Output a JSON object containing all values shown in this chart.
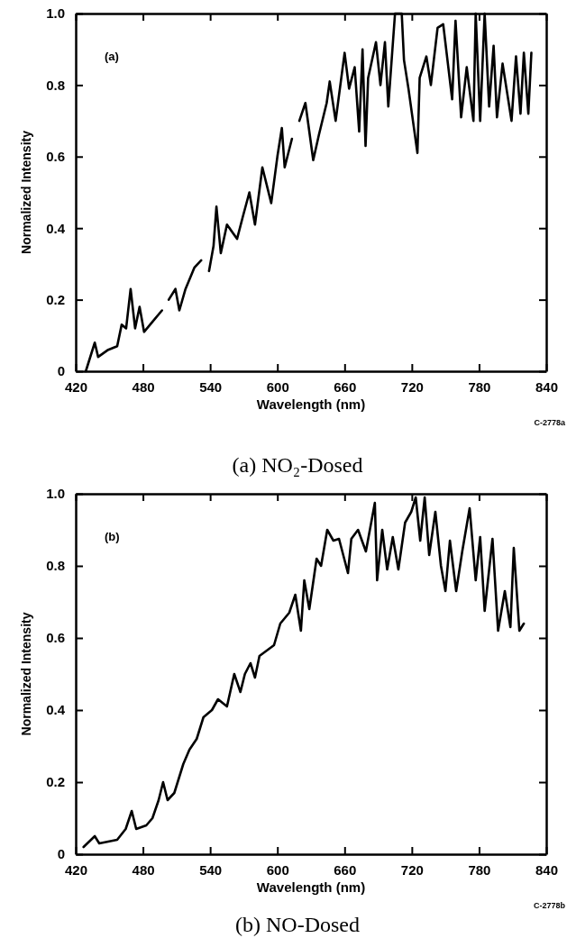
{
  "chart_data": [
    {
      "type": "line",
      "title": "(a) NO₂-Dosed",
      "xlabel": "Wavelength (nm)",
      "ylabel": "Normalized Intensity",
      "annotations": [
        "(a)",
        "C-2778a"
      ],
      "xlim": [
        420,
        840
      ],
      "ylim": [
        0,
        1.0
      ],
      "xticks": [
        420,
        480,
        540,
        600,
        660,
        720,
        780,
        840
      ],
      "yticks": [
        0,
        {
          "value": 0.2,
          "label": "0.2"
        },
        {
          "value": 0.4,
          "label": "0.4"
        },
        {
          "value": 0.6,
          "label": "0.6"
        },
        {
          "value": 0.8,
          "label": "0.8"
        },
        {
          "value": 1.0,
          "label": "1.0"
        }
      ],
      "grid": false,
      "marker": "none",
      "line_style": "solid",
      "series": [
        {
          "color": "#000000",
          "x": [
            429,
            437,
            440,
            449,
            457,
            461,
            465,
            469,
            473,
            477,
            481,
            489,
            497,
            500,
            503,
            509,
            512.5,
            518,
            526,
            532,
            535,
            539,
            543,
            545.6,
            549.5,
            555,
            564,
            569,
            575,
            580,
            586.6,
            594.5,
            600,
            604,
            606.5,
            613,
            616,
            619.6,
            625,
            632,
            637,
            644,
            646.7,
            652,
            660,
            664,
            669,
            673,
            676,
            678.7,
            681,
            688,
            692,
            696,
            699,
            705,
            711,
            713,
            717,
            725,
            727,
            733,
            737,
            743,
            748,
            756,
            759,
            764,
            769,
            775,
            777,
            781,
            785,
            789,
            793,
            796,
            801,
            809,
            813,
            817,
            820,
            824,
            826.7
          ],
          "values": [
            0,
            0.08,
            0.04,
            0.06,
            0.07,
            0.13,
            0.12,
            0.23,
            0.12,
            0.18,
            0.11,
            0.14,
            0.17,
            null,
            0.2,
            0.23,
            0.17,
            0.23,
            0.29,
            0.31,
            null,
            0.28,
            0.35,
            0.46,
            0.33,
            0.41,
            0.37,
            0.43,
            0.5,
            0.41,
            0.57,
            0.47,
            0.6,
            0.68,
            0.57,
            0.65,
            null,
            0.7,
            0.75,
            0.59,
            0.66,
            0.75,
            0.81,
            0.7,
            0.89,
            0.79,
            0.85,
            0.67,
            0.9,
            0.63,
            0.82,
            0.92,
            0.8,
            0.92,
            0.74,
            1.0,
            1.0,
            0.87,
            0.79,
            0.61,
            0.82,
            0.88,
            0.8,
            0.96,
            0.97,
            0.76,
            0.98,
            0.71,
            0.85,
            0.7,
            1.0,
            0.7,
            1.0,
            0.74,
            0.91,
            0.71,
            0.86,
            0.7,
            0.88,
            0.72,
            0.89,
            0.72,
            0.89
          ]
        }
      ]
    },
    {
      "type": "line",
      "title": "(b) NO-Dosed",
      "xlabel": "Wavelength (nm)",
      "ylabel": "Normalized Intensity",
      "annotations": [
        "(b)",
        "C-2778b"
      ],
      "xlim": [
        420,
        840
      ],
      "ylim": [
        0,
        1.0
      ],
      "xticks": [
        420,
        480,
        540,
        600,
        660,
        720,
        780,
        840
      ],
      "yticks": [
        0,
        {
          "value": 0.2,
          "label": "0.2"
        },
        {
          "value": 0.4,
          "label": "0.4"
        },
        {
          "value": 0.6,
          "label": "0.6"
        },
        {
          "value": 0.8,
          "label": "0.8"
        },
        {
          "value": 1.0,
          "label": "1.0"
        }
      ],
      "grid": false,
      "marker": "none",
      "line_style": "solid",
      "series": [
        {
          "color": "#000000",
          "x": [
            427,
            437,
            441,
            457,
            464.6,
            470,
            474,
            483,
            488.5,
            494,
            498,
            502,
            508,
            516,
            521.5,
            528,
            534,
            541.6,
            547,
            555,
            561.5,
            567,
            571,
            576,
            580,
            584,
            597,
            602.6,
            610.6,
            616,
            621,
            624,
            628.5,
            635,
            639,
            644.5,
            650,
            655,
            663,
            666,
            672,
            679,
            687,
            689,
            693.6,
            698,
            703,
            708,
            714,
            719.5,
            723.5,
            727.5,
            731.5,
            735.5,
            741,
            746,
            750,
            754,
            759.6,
            765,
            771.6,
            777,
            781,
            785,
            792,
            797,
            803,
            808,
            811,
            816,
            820
          ],
          "values": [
            0.02,
            0.05,
            0.03,
            0.04,
            0.07,
            0.12,
            0.07,
            0.08,
            0.1,
            0.15,
            0.2,
            0.15,
            0.17,
            0.25,
            0.29,
            0.32,
            0.38,
            0.4,
            0.43,
            0.41,
            0.5,
            0.45,
            0.5,
            0.53,
            0.49,
            0.55,
            0.58,
            0.64,
            0.67,
            0.72,
            0.62,
            0.76,
            0.68,
            0.82,
            0.8,
            0.9,
            0.87,
            0.875,
            0.78,
            0.875,
            0.9,
            0.84,
            0.975,
            0.76,
            0.9,
            0.79,
            0.88,
            0.79,
            0.92,
            0.95,
            0.99,
            0.87,
            0.99,
            0.83,
            0.95,
            0.8,
            0.73,
            0.87,
            0.73,
            0.84,
            0.96,
            0.76,
            0.88,
            0.675,
            0.875,
            0.62,
            0.73,
            0.63,
            0.85,
            0.62,
            0.64
          ]
        }
      ]
    }
  ]
}
